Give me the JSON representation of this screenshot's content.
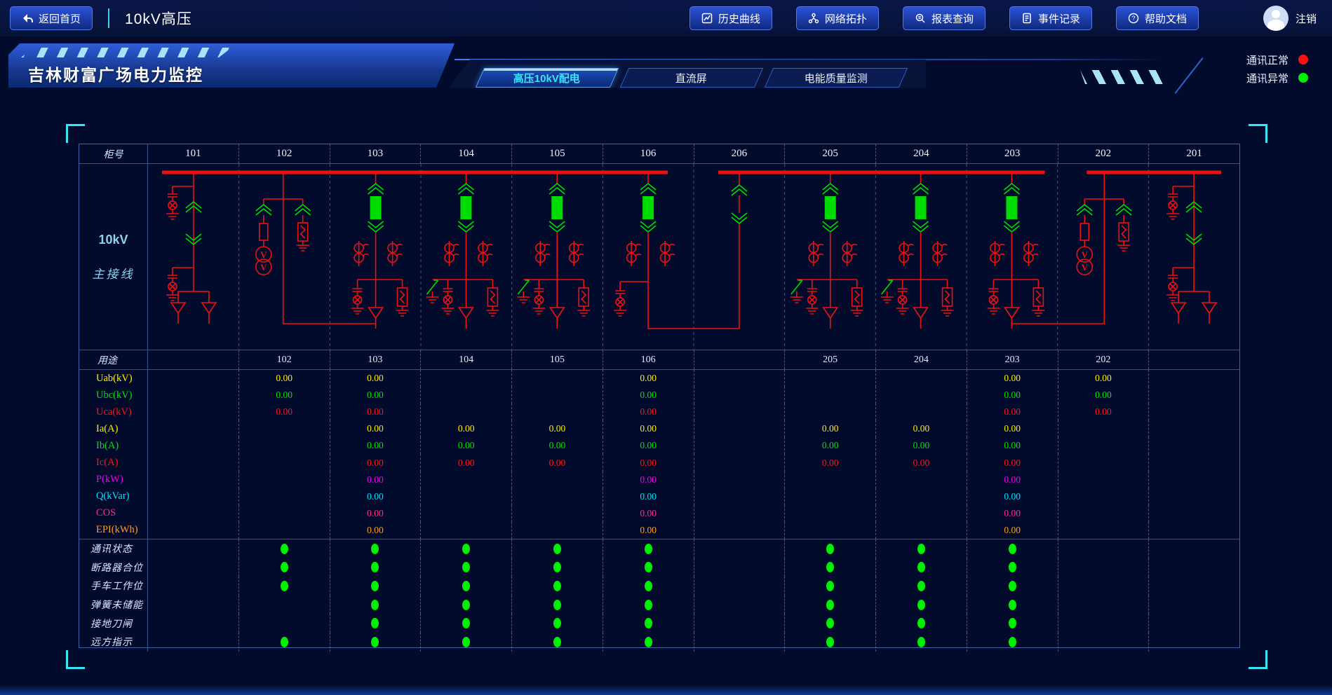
{
  "header": {
    "back_label": "返回首页",
    "page_title": "10kV高压",
    "nav_buttons": [
      {
        "label": "历史曲线",
        "icon": "curve-icon"
      },
      {
        "label": "网络拓扑",
        "icon": "topology-icon"
      },
      {
        "label": "报表查询",
        "icon": "report-search-icon"
      },
      {
        "label": "事件记录",
        "icon": "event-log-icon"
      },
      {
        "label": "帮助文档",
        "icon": "help-icon"
      }
    ],
    "logout_label": "注销"
  },
  "banner": {
    "title": "吉林财富广场电力监控",
    "tabs": [
      {
        "label": "高压10kV配电",
        "active": true
      },
      {
        "label": "直流屏",
        "active": false
      },
      {
        "label": "电能质量监测",
        "active": false
      }
    ],
    "legend": [
      {
        "label": "通讯正常",
        "color": "#ff1010"
      },
      {
        "label": "通讯异常",
        "color": "#00f000"
      }
    ]
  },
  "table": {
    "cabinet_row_label": "柜号",
    "cabinets": [
      "101",
      "102",
      "103",
      "104",
      "105",
      "106",
      "206",
      "205",
      "204",
      "203",
      "202",
      "201"
    ],
    "diagram_label_line1": "10kV",
    "diagram_label_line2": "主接线",
    "diagram": {
      "bus_color": "#f01010",
      "device_on_color": "#00dc00",
      "columns": [
        {
          "cabinet": "101",
          "type": "incoming-feeder"
        },
        {
          "cabinet": "102",
          "type": "pt-cabinet"
        },
        {
          "cabinet": "103",
          "type": "breaker-feeder"
        },
        {
          "cabinet": "104",
          "type": "breaker-feeder-earthswitch"
        },
        {
          "cabinet": "105",
          "type": "breaker-feeder-earthswitch"
        },
        {
          "cabinet": "106",
          "type": "bus-tie-breaker"
        },
        {
          "cabinet": "206",
          "type": "bus-tie-riser"
        },
        {
          "cabinet": "205",
          "type": "breaker-feeder-earthswitch"
        },
        {
          "cabinet": "204",
          "type": "breaker-feeder-earthswitch"
        },
        {
          "cabinet": "203",
          "type": "breaker-feeder"
        },
        {
          "cabinet": "202",
          "type": "pt-cabinet"
        },
        {
          "cabinet": "201",
          "type": "incoming-feeder"
        }
      ]
    },
    "usage_row_label": "用途",
    "usage_values": [
      "",
      "102",
      "103",
      "104",
      "105",
      "106",
      "",
      "205",
      "204",
      "203",
      "202",
      ""
    ],
    "measurement_rows": [
      {
        "label": "Uab(kV)",
        "color": "#ffec00",
        "values": [
          "",
          "0.00",
          "0.00",
          "",
          "",
          "0.00",
          "",
          "",
          "",
          "0.00",
          "0.00",
          ""
        ]
      },
      {
        "label": "Ubc(kV)",
        "color": "#00e400",
        "values": [
          "",
          "0.00",
          "0.00",
          "",
          "",
          "0.00",
          "",
          "",
          "",
          "0.00",
          "0.00",
          ""
        ]
      },
      {
        "label": "Uca(kV)",
        "color": "#ff1616",
        "values": [
          "",
          "0.00",
          "0.00",
          "",
          "",
          "0.00",
          "",
          "",
          "",
          "0.00",
          "0.00",
          ""
        ]
      },
      {
        "label": "Ia(A)",
        "color": "#ffec00",
        "values": [
          "",
          "",
          "0.00",
          "0.00",
          "0.00",
          "0.00",
          "",
          "0.00",
          "0.00",
          "0.00",
          "",
          ""
        ]
      },
      {
        "label": "Ib(A)",
        "color": "#00e400",
        "values": [
          "",
          "",
          "0.00",
          "0.00",
          "0.00",
          "0.00",
          "",
          "0.00",
          "0.00",
          "0.00",
          "",
          ""
        ]
      },
      {
        "label": "Ic(A)",
        "color": "#ff1616",
        "values": [
          "",
          "",
          "0.00",
          "0.00",
          "0.00",
          "0.00",
          "",
          "0.00",
          "0.00",
          "0.00",
          "",
          ""
        ]
      },
      {
        "label": "P(kW)",
        "color": "#f000f0",
        "values": [
          "",
          "",
          "0.00",
          "",
          "",
          "0.00",
          "",
          "",
          "",
          "0.00",
          "",
          ""
        ]
      },
      {
        "label": "Q(kVar)",
        "color": "#00e0ff",
        "values": [
          "",
          "",
          "0.00",
          "",
          "",
          "0.00",
          "",
          "",
          "",
          "0.00",
          "",
          ""
        ]
      },
      {
        "label": "COS",
        "color": "#ff2d86",
        "values": [
          "",
          "",
          "0.00",
          "",
          "",
          "0.00",
          "",
          "",
          "",
          "0.00",
          "",
          ""
        ]
      },
      {
        "label": "EPI(kWh)",
        "color": "#ff9d20",
        "values": [
          "",
          "",
          "0.00",
          "",
          "",
          "0.00",
          "",
          "",
          "",
          "0.00",
          "",
          ""
        ]
      }
    ],
    "status_on_color": "#00f000",
    "status_rows": [
      {
        "label": "通讯状态",
        "dots": [
          0,
          1,
          1,
          1,
          1,
          1,
          0,
          1,
          1,
          1,
          0,
          0
        ]
      },
      {
        "label": "断路器合位",
        "dots": [
          0,
          1,
          1,
          1,
          1,
          1,
          0,
          1,
          1,
          1,
          0,
          0
        ]
      },
      {
        "label": "手车工作位",
        "dots": [
          0,
          1,
          1,
          1,
          1,
          1,
          0,
          1,
          1,
          1,
          0,
          0
        ]
      },
      {
        "label": "弹簧未储能",
        "dots": [
          0,
          0,
          1,
          1,
          1,
          1,
          0,
          1,
          1,
          1,
          0,
          0
        ]
      },
      {
        "label": "接地刀闸",
        "dots": [
          0,
          0,
          1,
          1,
          1,
          1,
          0,
          1,
          1,
          1,
          0,
          0
        ]
      },
      {
        "label": "远方指示",
        "dots": [
          0,
          1,
          1,
          1,
          1,
          1,
          0,
          1,
          1,
          1,
          0,
          0
        ]
      }
    ]
  }
}
